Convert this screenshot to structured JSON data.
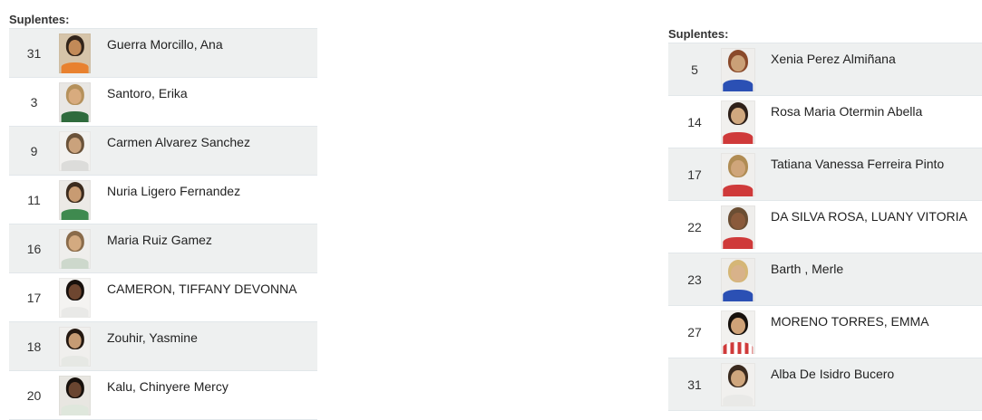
{
  "colors": {
    "page_bg": "#ffffff",
    "row_alt_bg": "#eef0f0",
    "row_border": "#e2e7ea",
    "header_text": "#333333",
    "number_text": "#333333",
    "name_text": "#222222"
  },
  "left_roster": {
    "title": "Suplentes:",
    "players": [
      {
        "number": "31",
        "name": "Guerra Morcillo, Ana",
        "photo": {
          "bg": "#d6c4a9",
          "hair": "#32241a",
          "skin": "#c28a58",
          "jersey": "#e8812f"
        }
      },
      {
        "number": "3",
        "name": "Santoro, Erika",
        "photo": {
          "bg": "#e9e7e4",
          "hair": "#b5915c",
          "skin": "#d8ab7e",
          "jersey": "#2f6b3d"
        }
      },
      {
        "number": "9",
        "name": "Carmen Alvarez Sanchez",
        "photo": {
          "bg": "#f2f1ef",
          "hair": "#6a5239",
          "skin": "#caa27c",
          "jersey": "#dcdcda"
        }
      },
      {
        "number": "11",
        "name": "Nuria Ligero Fernandez",
        "photo": {
          "bg": "#eceae6",
          "hair": "#3c2b1d",
          "skin": "#c89b72",
          "jersey": "#3f8a4f"
        }
      },
      {
        "number": "16",
        "name": "Maria Ruiz Gamez",
        "photo": {
          "bg": "#efeeec",
          "hair": "#8a6b4a",
          "skin": "#d3aa80",
          "jersey": "#cdd8cc"
        }
      },
      {
        "number": "17",
        "name": "CAMERON, TIFFANY DEVONNA",
        "photo": {
          "bg": "#f4f3f1",
          "hair": "#17100c",
          "skin": "#6e4630",
          "jersey": "#e9e9e7"
        }
      },
      {
        "number": "18",
        "name": "Zouhir, Yasmine",
        "photo": {
          "bg": "#f0efed",
          "hair": "#241811",
          "skin": "#c69b74",
          "jersey": "#e6e8e4"
        }
      },
      {
        "number": "20",
        "name": "Kalu, Chinyere Mercy",
        "photo": {
          "bg": "#e8e6e1",
          "hair": "#17100c",
          "skin": "#6a4530",
          "jersey": "#dfe7dc"
        }
      }
    ]
  },
  "right_roster": {
    "title": "Suplentes:",
    "players": [
      {
        "number": "5",
        "name": "Xenia Perez Almiñana",
        "photo": {
          "bg": "#efeeec",
          "hair": "#8a4a2b",
          "skin": "#caa077",
          "jersey": "#2b50b4"
        }
      },
      {
        "number": "14",
        "name": "Rosa Maria Otermin Abella",
        "photo": {
          "bg": "#f1f0ee",
          "hair": "#2e2019",
          "skin": "#d0a87f",
          "jersey": "#cf3a3a"
        }
      },
      {
        "number": "17",
        "name": "Tatiana Vanessa Ferreira Pinto",
        "photo": {
          "bg": "#f0efed",
          "hair": "#b08c54",
          "skin": "#cfa57a",
          "jersey": "#cf3a3a"
        }
      },
      {
        "number": "22",
        "name": "DA SILVA ROSA, LUANY VITORIA",
        "photo": {
          "bg": "#efeeec",
          "hair": "#6b4e33",
          "skin": "#8a5a3b",
          "jersey": "#cf3a3a"
        }
      },
      {
        "number": "23",
        "name": "Barth , Merle",
        "photo": {
          "bg": "#eeedeb",
          "hair": "#d5b676",
          "skin": "#d8b28a",
          "jersey": "#2b50b4"
        }
      },
      {
        "number": "27",
        "name": "MORENO TORRES, EMMA",
        "photo": {
          "bg": "#f2f1ef",
          "hair": "#17110d",
          "skin": "#cfa278",
          "jersey": "#cf3a3a",
          "jersey2": "#ffffff",
          "striped": true
        }
      },
      {
        "number": "31",
        "name": "Alba De Isidro Bucero",
        "photo": {
          "bg": "#f1f0ee",
          "hair": "#3a2a1e",
          "skin": "#cfa67d",
          "jersey": "#e9e9e7"
        }
      }
    ]
  }
}
